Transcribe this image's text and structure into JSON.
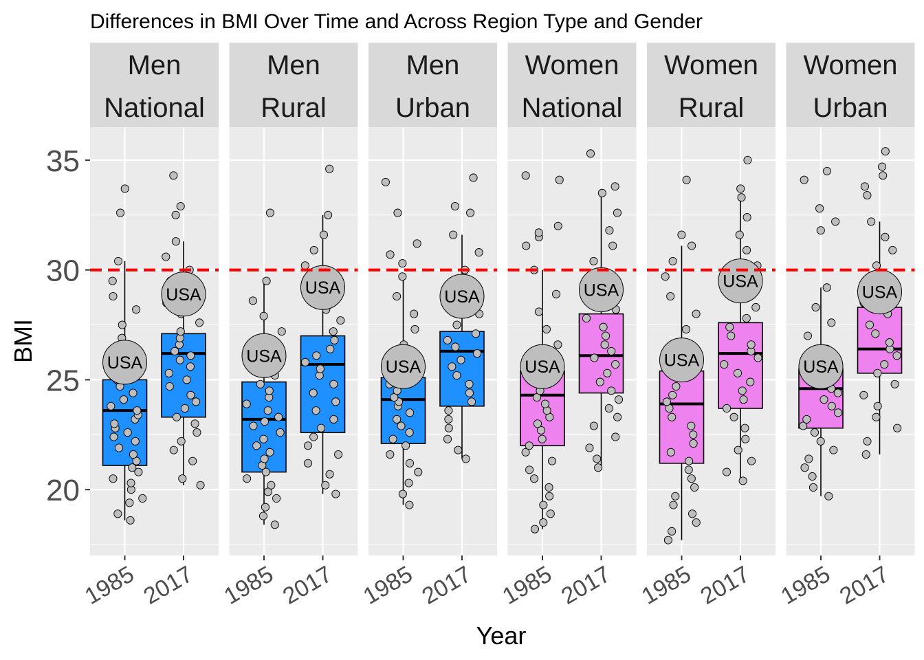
{
  "chart_data": {
    "type": "box",
    "title": "Differences in BMI Over Time and Across Region Type and Gender",
    "xlabel": "Year",
    "ylabel": "BMI",
    "ylim": [
      17,
      36.5
    ],
    "yticks": [
      20,
      25,
      30,
      35
    ],
    "reference_line": {
      "y": 30,
      "color": "#ff0000",
      "style": "dashed"
    },
    "highlight_label": "USA",
    "point_color": "#bebebe",
    "colors": {
      "Men": "#1e90ff",
      "Women": "#ee82ee"
    },
    "panels": [
      {
        "strip": [
          "Men",
          "National"
        ],
        "gender": "Men",
        "years": [
          {
            "year": "1985",
            "q1": 21.1,
            "median": 23.6,
            "q3": 25.0,
            "lower_whisker": 18.6,
            "upper_whisker": 30.4,
            "usa": 25.8,
            "outliers": [
              32.6,
              33.7
            ],
            "points": [
              18.6,
              18.9,
              19.4,
              19.6,
              20.0,
              20.3,
              20.5,
              20.8,
              21.0,
              21.3,
              21.6,
              21.9,
              22.2,
              22.4,
              22.6,
              22.8,
              23.0,
              23.2,
              23.4,
              23.6,
              23.8,
              24.1,
              24.4,
              24.7,
              25.0,
              25.3,
              25.7,
              26.2,
              26.9,
              27.5,
              28.2,
              28.8,
              29.5,
              30.4
            ]
          },
          {
            "year": "2017",
            "q1": 23.3,
            "median": 26.2,
            "q3": 27.1,
            "lower_whisker": 20.2,
            "upper_whisker": 31.3,
            "usa": 28.9,
            "outliers": [
              32.5,
              32.9,
              34.3
            ],
            "points": [
              20.2,
              20.5,
              21.3,
              21.8,
              22.2,
              22.6,
              23.0,
              23.3,
              23.7,
              24.0,
              24.3,
              24.7,
              25.0,
              25.3,
              25.6,
              25.9,
              26.1,
              26.3,
              26.6,
              26.9,
              27.2,
              27.6,
              28.0,
              28.5,
              29.0,
              29.5,
              30.0,
              30.6,
              31.3
            ]
          }
        ]
      },
      {
        "strip": [
          "Men",
          "Rural"
        ],
        "gender": "Men",
        "years": [
          {
            "year": "1985",
            "q1": 20.8,
            "median": 23.2,
            "q3": 24.9,
            "lower_whisker": 18.4,
            "upper_whisker": 29.5,
            "usa": 26.1,
            "outliers": [
              32.6
            ],
            "points": [
              18.4,
              18.8,
              19.2,
              19.6,
              19.9,
              20.2,
              20.5,
              20.8,
              21.1,
              21.4,
              21.7,
              22.0,
              22.3,
              22.6,
              22.9,
              23.1,
              23.3,
              23.6,
              23.9,
              24.2,
              24.5,
              24.8,
              25.2,
              25.6,
              26.1,
              26.6,
              27.2,
              27.9,
              28.6,
              29.5
            ]
          },
          {
            "year": "2017",
            "q1": 22.6,
            "median": 25.7,
            "q3": 27.0,
            "lower_whisker": 19.8,
            "upper_whisker": 32.5,
            "usa": 29.2,
            "outliers": [
              34.6
            ],
            "points": [
              19.8,
              20.2,
              20.7,
              21.2,
              21.6,
              22.0,
              22.4,
              22.8,
              23.2,
              23.6,
              24.0,
              24.4,
              24.8,
              25.2,
              25.5,
              25.8,
              26.1,
              26.4,
              26.8,
              27.2,
              27.7,
              28.2,
              28.8,
              29.5,
              30.2,
              30.9,
              31.6,
              32.5
            ]
          }
        ]
      },
      {
        "strip": [
          "Men",
          "Urban"
        ],
        "gender": "Men",
        "years": [
          {
            "year": "1985",
            "q1": 22.1,
            "median": 24.1,
            "q3": 25.1,
            "lower_whisker": 19.3,
            "upper_whisker": 29.7,
            "usa": 25.6,
            "outliers": [
              30.3,
              30.7,
              31.2,
              32.6,
              34.0
            ],
            "points": [
              19.3,
              19.8,
              20.3,
              20.8,
              21.2,
              21.6,
              22.0,
              22.3,
              22.6,
              22.9,
              23.2,
              23.5,
              23.8,
              24.0,
              24.2,
              24.5,
              24.8,
              25.1,
              25.5,
              26.0,
              26.6,
              27.3,
              28.0,
              28.8,
              29.7
            ]
          },
          {
            "year": "2017",
            "q1": 23.8,
            "median": 26.3,
            "q3": 27.2,
            "lower_whisker": 21.4,
            "upper_whisker": 31.6,
            "usa": 28.8,
            "outliers": [
              32.6,
              32.9,
              34.2
            ],
            "points": [
              21.4,
              21.8,
              22.3,
              22.8,
              23.2,
              23.6,
              24.0,
              24.4,
              24.8,
              25.2,
              25.6,
              25.9,
              26.2,
              26.5,
              26.8,
              27.1,
              27.5,
              28.0,
              28.6,
              29.3,
              30.0,
              30.8,
              31.6
            ]
          }
        ]
      },
      {
        "strip": [
          "Women",
          "National"
        ],
        "gender": "Women",
        "years": [
          {
            "year": "1985",
            "q1": 22.0,
            "median": 24.3,
            "q3": 25.4,
            "lower_whisker": 18.2,
            "upper_whisker": 30.0,
            "usa": 25.6,
            "outliers": [
              31.1,
              31.5,
              31.7,
              32.0,
              34.1,
              34.3
            ],
            "points": [
              18.2,
              18.5,
              18.9,
              19.3,
              19.7,
              20.1,
              20.5,
              20.9,
              21.3,
              21.7,
              22.0,
              22.3,
              22.7,
              23.0,
              23.3,
              23.6,
              23.9,
              24.2,
              24.5,
              24.8,
              25.1,
              25.5,
              26.0,
              26.6,
              27.3,
              28.1,
              28.9,
              30.0
            ]
          },
          {
            "year": "2017",
            "q1": 24.4,
            "median": 26.1,
            "q3": 28.0,
            "lower_whisker": 21.0,
            "upper_whisker": 33.5,
            "usa": 29.1,
            "outliers": [
              33.8,
              35.3
            ],
            "points": [
              21.0,
              21.4,
              21.9,
              22.4,
              22.9,
              23.3,
              23.7,
              24.1,
              24.5,
              24.9,
              25.3,
              25.7,
              26.0,
              26.3,
              26.6,
              27.0,
              27.4,
              27.8,
              28.2,
              28.7,
              29.2,
              29.8,
              30.4,
              31.1,
              31.8,
              32.6,
              33.5
            ]
          }
        ]
      },
      {
        "strip": [
          "Women",
          "Rural"
        ],
        "gender": "Women",
        "years": [
          {
            "year": "1985",
            "q1": 21.2,
            "median": 23.9,
            "q3": 25.4,
            "lower_whisker": 17.7,
            "upper_whisker": 31.1,
            "usa": 25.9,
            "outliers": [
              31.6,
              34.1
            ],
            "points": [
              17.7,
              18.1,
              18.5,
              18.9,
              19.3,
              19.7,
              20.1,
              20.5,
              20.9,
              21.3,
              21.7,
              22.1,
              22.5,
              22.9,
              23.3,
              23.7,
              24.0,
              24.3,
              24.7,
              25.1,
              25.5,
              26.0,
              26.6,
              27.3,
              28.0,
              28.8,
              29.7,
              30.4,
              31.1
            ]
          },
          {
            "year": "2017",
            "q1": 23.7,
            "median": 26.2,
            "q3": 27.6,
            "lower_whisker": 20.4,
            "upper_whisker": 33.3,
            "usa": 29.5,
            "outliers": [
              33.7,
              35.0
            ],
            "points": [
              20.4,
              20.8,
              21.3,
              21.8,
              22.3,
              22.8,
              23.3,
              23.7,
              24.1,
              24.5,
              24.9,
              25.3,
              25.7,
              26.0,
              26.3,
              26.6,
              27.0,
              27.4,
              27.8,
              28.3,
              28.9,
              29.5,
              30.2,
              30.9,
              31.6,
              32.4,
              33.3
            ]
          }
        ]
      },
      {
        "strip": [
          "Women",
          "Urban"
        ],
        "gender": "Women",
        "years": [
          {
            "year": "1985",
            "q1": 22.8,
            "median": 24.6,
            "q3": 25.5,
            "lower_whisker": 19.7,
            "upper_whisker": 29.2,
            "usa": 25.6,
            "outliers": [
              31.8,
              32.2,
              32.8,
              34.1,
              34.5
            ],
            "points": [
              19.7,
              20.1,
              20.6,
              21.0,
              21.4,
              21.8,
              22.2,
              22.6,
              22.9,
              23.2,
              23.5,
              23.8,
              24.1,
              24.4,
              24.6,
              24.9,
              25.2,
              25.5,
              25.9,
              26.4,
              27.0,
              27.6,
              28.3,
              29.2
            ]
          },
          {
            "year": "2017",
            "q1": 25.3,
            "median": 26.4,
            "q3": 28.3,
            "lower_whisker": 21.6,
            "upper_whisker": 32.2,
            "usa": 29.0,
            "outliers": [
              33.4,
              33.8,
              34.3,
              34.7,
              35.4
            ],
            "points": [
              21.6,
              22.2,
              22.8,
              23.3,
              23.8,
              24.3,
              24.8,
              25.3,
              25.7,
              26.1,
              26.4,
              26.7,
              27.1,
              27.5,
              28.0,
              28.5,
              29.0,
              29.6,
              30.2,
              30.9,
              31.5,
              32.2
            ]
          }
        ]
      }
    ]
  }
}
